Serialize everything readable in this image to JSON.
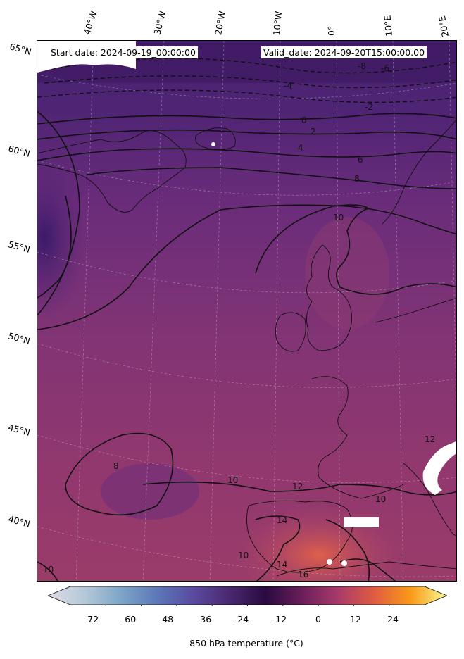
{
  "header": {
    "start_date": "Start date: 2024-09-19_00:00:00",
    "valid_date": "Valid_date: 2024-09-20T15:00:00.00"
  },
  "longitude_labels": [
    "40°W",
    "30°W",
    "20°W",
    "10°W",
    "0°",
    "10°E",
    "20°E"
  ],
  "latitude_labels": [
    "65°N",
    "60°N",
    "55°N",
    "50°N",
    "45°N",
    "40°N"
  ],
  "contour_labels": [
    "-8",
    "-6",
    "-4",
    "-2",
    "0",
    "2",
    "4",
    "6",
    "8",
    "10",
    "10",
    "10",
    "12",
    "12",
    "14",
    "14",
    "16",
    "10",
    "8",
    "10"
  ],
  "colorbar": {
    "ticks": [
      "-72",
      "-60",
      "-48",
      "-36",
      "-24",
      "-12",
      "0",
      "12",
      "24"
    ],
    "label": "850 hPa temperature (°C)",
    "range": [
      -84,
      36
    ],
    "colors": [
      "#e2dce6",
      "#b4c8d8",
      "#7ea6c8",
      "#5c78b8",
      "#5a4aa0",
      "#4a2870",
      "#2a0a40",
      "#6a1e5a",
      "#a83a6a",
      "#e05c40",
      "#fa9a18",
      "#f8f890"
    ]
  },
  "map": {
    "variable": "850 hPa temperature",
    "field_colors": {
      "cold": "#3c1a6c",
      "mid": "#6a2c7a",
      "warm": "#92386e",
      "hot": "#d0504a"
    }
  }
}
